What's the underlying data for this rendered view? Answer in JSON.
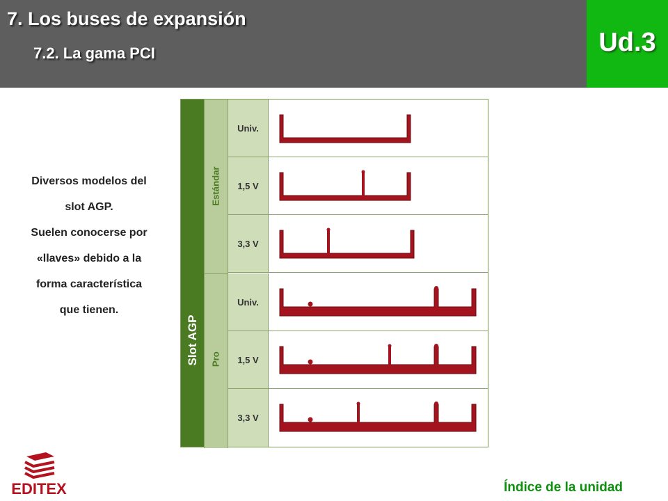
{
  "header": {
    "title": "7. Los buses de expansión",
    "subtitle": "7.2. La gama PCI",
    "unit": "Ud.3",
    "bg_color": "#5e5e5e",
    "unit_color": "#11b811"
  },
  "caption": {
    "lines": [
      "Diversos modelos del",
      "slot AGP.",
      "Suelen conocerse por",
      "«llaves» debido a la",
      "forma característica",
      "que tienen."
    ]
  },
  "diagram": {
    "main_label": "Slot AGP",
    "groups": [
      {
        "label": "Estándar",
        "rows": [
          {
            "voltage": "Univ.",
            "type": "std",
            "keys": []
          },
          {
            "voltage": "1,5 V",
            "type": "std",
            "keys": [
              "right"
            ]
          },
          {
            "voltage": "3,3 V",
            "type": "std",
            "keys": [
              "left"
            ]
          }
        ]
      },
      {
        "label": "Pro",
        "rows": [
          {
            "voltage": "Univ.",
            "type": "pro",
            "keys": []
          },
          {
            "voltage": "1,5 V",
            "type": "pro",
            "keys": [
              "right"
            ]
          },
          {
            "voltage": "3,3 V",
            "type": "pro",
            "keys": [
              "left"
            ]
          }
        ]
      }
    ],
    "slot_color": "#a3141e"
  },
  "footer": {
    "logo_text": "EDITEX",
    "index_link": "Índice de la unidad"
  }
}
